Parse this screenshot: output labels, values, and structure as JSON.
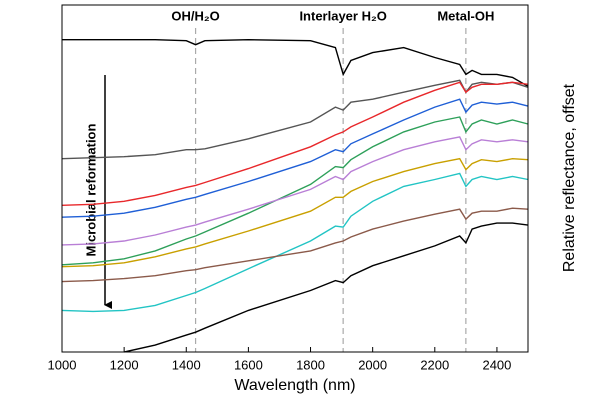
{
  "chart_data": {
    "type": "line",
    "x_label": "Wavelength (nm)",
    "y_label": "Relative reflectance, offset",
    "xlim": [
      1000,
      2500
    ],
    "xticks": [
      1000,
      1200,
      1400,
      1600,
      1800,
      2000,
      2200,
      2400
    ],
    "ylim": [
      0,
      35
    ],
    "x": [
      1000,
      1100,
      1200,
      1300,
      1400,
      1430,
      1460,
      1600,
      1800,
      1880,
      1905,
      1930,
      2000,
      2100,
      2200,
      2280,
      2300,
      2320,
      2350,
      2400,
      2450,
      2500
    ],
    "annotations": [
      {
        "x": 1430,
        "label": "OH/H₂O"
      },
      {
        "x": 1905,
        "label": "Interlayer H₂O"
      },
      {
        "x": 2300,
        "label": "Metal-OH"
      }
    ],
    "arrow_label": "Microbial reformation",
    "series": [
      {
        "color": "#000000",
        "values": [
          31.5,
          31.5,
          31.5,
          31.5,
          31.4,
          31.0,
          31.4,
          31.5,
          31.4,
          30.7,
          28.0,
          29.4,
          30.2,
          30.7,
          29.7,
          29.0,
          28.0,
          28.4,
          28.0,
          28.0,
          27.7,
          26.8
        ]
      },
      {
        "color": "#555555",
        "values": [
          19.5,
          19.6,
          19.7,
          19.9,
          20.4,
          20.4,
          20.5,
          21.5,
          23.2,
          24.7,
          24.4,
          25.2,
          25.5,
          26.2,
          26.9,
          27.4,
          26.2,
          27.0,
          27.2,
          27.0,
          27.2,
          26.7
        ]
      },
      {
        "color": "#e8282b",
        "values": [
          14.8,
          14.9,
          15.2,
          15.8,
          16.6,
          16.8,
          17.1,
          18.5,
          20.7,
          21.9,
          22.2,
          22.7,
          23.7,
          25.2,
          26.4,
          27.2,
          26.2,
          26.7,
          27.0,
          27.0,
          27.2,
          27.0
        ]
      },
      {
        "color": "#1f5fd6",
        "values": [
          13.6,
          13.7,
          14.0,
          14.6,
          15.4,
          15.6,
          15.9,
          17.2,
          19.2,
          20.4,
          20.2,
          21.0,
          22.0,
          23.4,
          24.7,
          25.5,
          24.2,
          24.9,
          25.2,
          25.0,
          25.2,
          24.8
        ]
      },
      {
        "color": "#2ea05a",
        "values": [
          8.8,
          9.0,
          9.4,
          10.2,
          11.4,
          11.7,
          12.1,
          14.0,
          16.9,
          18.7,
          18.6,
          19.4,
          20.7,
          22.2,
          23.2,
          23.7,
          22.2,
          23.0,
          23.4,
          23.0,
          23.4,
          23.0
        ]
      },
      {
        "color": "#b97fd6",
        "values": [
          10.8,
          10.9,
          11.2,
          11.8,
          12.6,
          12.8,
          13.1,
          14.4,
          16.4,
          17.7,
          17.4,
          18.2,
          19.2,
          20.4,
          21.2,
          21.7,
          20.4,
          21.0,
          21.4,
          21.2,
          21.4,
          21.2
        ]
      },
      {
        "color": "#c9a000",
        "values": [
          8.6,
          8.7,
          9.0,
          9.6,
          10.4,
          10.6,
          10.9,
          12.2,
          14.2,
          15.6,
          15.6,
          16.2,
          17.2,
          18.2,
          19.0,
          19.5,
          18.4,
          19.0,
          19.4,
          19.2,
          19.5,
          19.4
        ]
      },
      {
        "color": "#22c4c4",
        "values": [
          4.2,
          4.1,
          4.2,
          4.7,
          5.7,
          6.0,
          6.4,
          8.4,
          11.2,
          12.7,
          12.6,
          13.7,
          15.2,
          16.7,
          17.4,
          18.0,
          16.7,
          17.4,
          17.7,
          17.4,
          17.7,
          17.4
        ]
      },
      {
        "color": "#8b5a4a",
        "values": [
          7.1,
          7.2,
          7.4,
          7.7,
          8.2,
          8.3,
          8.5,
          9.2,
          10.2,
          11.0,
          11.2,
          11.6,
          12.4,
          13.2,
          13.9,
          14.4,
          13.4,
          14.0,
          14.2,
          14.2,
          14.5,
          14.4
        ]
      },
      {
        "color": "#000000",
        "values": [
          null,
          null,
          0.0,
          0.7,
          1.7,
          2.0,
          2.4,
          4.2,
          6.2,
          7.2,
          7.0,
          7.7,
          8.7,
          9.7,
          10.7,
          11.7,
          11.0,
          12.4,
          12.7,
          13.0,
          13.0,
          12.8
        ]
      }
    ]
  }
}
